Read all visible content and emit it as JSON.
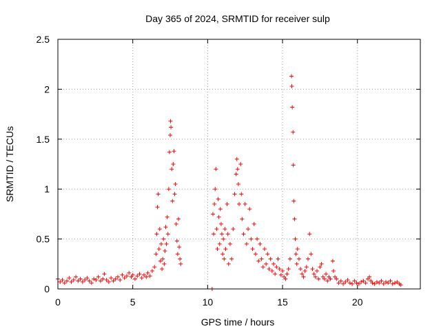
{
  "chart_data": {
    "type": "scatter",
    "title": "Day 365 of 2024, SRMTID for receiver sulp",
    "xlabel": "GPS time / hours",
    "ylabel": "SRMTID / TECUs",
    "xlim": [
      0,
      24.2
    ],
    "ylim": [
      0,
      2.5
    ],
    "xticks": [
      0,
      5,
      10,
      15,
      20
    ],
    "xtick_labels": [
      "0",
      "5",
      "10",
      "15",
      "20"
    ],
    "yticks": [
      0,
      0.5,
      1,
      1.5,
      2,
      2.5
    ],
    "ytick_labels": [
      "0",
      "0.5",
      "1",
      "1.5",
      "2",
      "2.5"
    ],
    "grid": true,
    "marker": "+",
    "color": "#ff0000",
    "series": [
      {
        "name": "SRMTID",
        "points": [
          [
            0.0,
            0.1
          ],
          [
            0.15,
            0.07
          ],
          [
            0.3,
            0.09
          ],
          [
            0.45,
            0.06
          ],
          [
            0.6,
            0.08
          ],
          [
            0.75,
            0.11
          ],
          [
            0.9,
            0.07
          ],
          [
            1.05,
            0.09
          ],
          [
            1.2,
            0.12
          ],
          [
            1.35,
            0.08
          ],
          [
            1.5,
            0.1
          ],
          [
            1.65,
            0.07
          ],
          [
            1.8,
            0.09
          ],
          [
            1.95,
            0.11
          ],
          [
            2.1,
            0.08
          ],
          [
            2.25,
            0.06
          ],
          [
            2.4,
            0.1
          ],
          [
            2.55,
            0.09
          ],
          [
            2.7,
            0.12
          ],
          [
            2.85,
            0.08
          ],
          [
            3.0,
            0.1
          ],
          [
            3.1,
            0.15
          ],
          [
            3.25,
            0.09
          ],
          [
            3.4,
            0.07
          ],
          [
            3.55,
            0.11
          ],
          [
            3.7,
            0.08
          ],
          [
            3.85,
            0.1
          ],
          [
            4.0,
            0.12
          ],
          [
            4.15,
            0.09
          ],
          [
            4.3,
            0.14
          ],
          [
            4.45,
            0.11
          ],
          [
            4.6,
            0.13
          ],
          [
            4.75,
            0.16
          ],
          [
            4.9,
            0.12
          ],
          [
            5.0,
            0.14
          ],
          [
            5.15,
            0.1
          ],
          [
            5.3,
            0.13
          ],
          [
            5.45,
            0.15
          ],
          [
            5.6,
            0.11
          ],
          [
            5.75,
            0.14
          ],
          [
            5.9,
            0.12
          ],
          [
            6.0,
            0.16
          ],
          [
            6.15,
            0.13
          ],
          [
            6.3,
            0.18
          ],
          [
            6.45,
            0.22
          ],
          [
            6.55,
            0.35
          ],
          [
            6.6,
            0.55
          ],
          [
            6.65,
            0.82
          ],
          [
            6.7,
            0.95
          ],
          [
            6.75,
            0.4
          ],
          [
            6.8,
            0.6
          ],
          [
            6.85,
            0.28
          ],
          [
            6.9,
            0.45
          ],
          [
            6.95,
            0.2
          ],
          [
            7.0,
            0.3
          ],
          [
            7.05,
            0.5
          ],
          [
            7.1,
            0.25
          ],
          [
            7.15,
            0.38
          ],
          [
            7.2,
            0.62
          ],
          [
            7.25,
            0.45
          ],
          [
            7.3,
            0.72
          ],
          [
            7.35,
            0.55
          ],
          [
            7.4,
            1.0
          ],
          [
            7.45,
            1.37
          ],
          [
            7.5,
            1.54
          ],
          [
            7.52,
            1.68
          ],
          [
            7.55,
            1.62
          ],
          [
            7.6,
            1.2
          ],
          [
            7.65,
            0.88
          ],
          [
            7.7,
            1.25
          ],
          [
            7.75,
            1.38
          ],
          [
            7.8,
            0.95
          ],
          [
            7.85,
            1.05
          ],
          [
            7.9,
            0.65
          ],
          [
            7.95,
            0.48
          ],
          [
            8.0,
            0.35
          ],
          [
            8.05,
            0.7
          ],
          [
            8.1,
            0.42
          ],
          [
            8.15,
            0.3
          ],
          [
            8.2,
            0.25
          ],
          [
            10.3,
            0.0
          ],
          [
            10.35,
            0.75
          ],
          [
            10.4,
            0.55
          ],
          [
            10.45,
            0.85
          ],
          [
            10.5,
            1.0
          ],
          [
            10.55,
            1.2
          ],
          [
            10.6,
            0.6
          ],
          [
            10.65,
            0.4
          ],
          [
            10.7,
            0.9
          ],
          [
            10.75,
            0.72
          ],
          [
            10.8,
            0.45
          ],
          [
            10.85,
            0.8
          ],
          [
            10.9,
            0.65
          ],
          [
            10.95,
            0.55
          ],
          [
            11.0,
            0.35
          ],
          [
            11.05,
            0.5
          ],
          [
            11.1,
            0.3
          ],
          [
            11.15,
            0.6
          ],
          [
            11.2,
            0.4
          ],
          [
            11.3,
            0.85
          ],
          [
            11.35,
            0.55
          ],
          [
            11.4,
            0.25
          ],
          [
            11.5,
            0.45
          ],
          [
            11.6,
            0.3
          ],
          [
            11.7,
            0.6
          ],
          [
            11.8,
            0.95
          ],
          [
            11.9,
            1.15
          ],
          [
            11.95,
            1.3
          ],
          [
            12.0,
            1.2
          ],
          [
            12.05,
            1.05
          ],
          [
            12.1,
            0.85
          ],
          [
            12.2,
            1.25
          ],
          [
            12.25,
            0.95
          ],
          [
            12.3,
            0.7
          ],
          [
            12.4,
            0.55
          ],
          [
            12.5,
            0.85
          ],
          [
            12.6,
            0.45
          ],
          [
            12.7,
            0.6
          ],
          [
            12.8,
            0.8
          ],
          [
            12.9,
            0.5
          ],
          [
            13.0,
            0.4
          ],
          [
            13.1,
            0.65
          ],
          [
            13.2,
            0.35
          ],
          [
            13.3,
            0.5
          ],
          [
            13.4,
            0.28
          ],
          [
            13.5,
            0.45
          ],
          [
            13.6,
            0.3
          ],
          [
            13.7,
            0.22
          ],
          [
            13.8,
            0.4
          ],
          [
            13.9,
            0.25
          ],
          [
            14.0,
            0.35
          ],
          [
            14.1,
            0.2
          ],
          [
            14.2,
            0.3
          ],
          [
            14.3,
            0.18
          ],
          [
            14.4,
            0.25
          ],
          [
            14.5,
            0.15
          ],
          [
            14.6,
            0.22
          ],
          [
            14.7,
            0.3
          ],
          [
            14.8,
            0.2
          ],
          [
            14.9,
            0.14
          ],
          [
            15.0,
            0.18
          ],
          [
            15.1,
            0.12
          ],
          [
            15.2,
            0.1
          ],
          [
            15.3,
            0.15
          ],
          [
            15.4,
            0.2
          ],
          [
            15.5,
            0.3
          ],
          [
            15.6,
            2.13
          ],
          [
            15.62,
            2.03
          ],
          [
            15.65,
            1.82
          ],
          [
            15.7,
            1.57
          ],
          [
            15.72,
            1.24
          ],
          [
            15.75,
            0.88
          ],
          [
            15.8,
            0.7
          ],
          [
            15.85,
            0.5
          ],
          [
            15.9,
            0.35
          ],
          [
            15.95,
            0.25
          ],
          [
            16.0,
            0.4
          ],
          [
            16.1,
            0.3
          ],
          [
            16.2,
            0.2
          ],
          [
            16.3,
            0.15
          ],
          [
            16.4,
            0.12
          ],
          [
            16.5,
            0.18
          ],
          [
            16.6,
            0.22
          ],
          [
            16.7,
            0.3
          ],
          [
            16.8,
            0.55
          ],
          [
            16.9,
            0.35
          ],
          [
            17.0,
            0.2
          ],
          [
            17.1,
            0.15
          ],
          [
            17.2,
            0.12
          ],
          [
            17.3,
            0.18
          ],
          [
            17.4,
            0.1
          ],
          [
            17.5,
            0.22
          ],
          [
            17.6,
            0.25
          ],
          [
            17.7,
            0.12
          ],
          [
            17.8,
            0.1
          ],
          [
            17.9,
            0.15
          ],
          [
            18.0,
            0.08
          ],
          [
            18.1,
            0.12
          ],
          [
            18.2,
            0.1
          ],
          [
            18.35,
            0.28
          ],
          [
            18.4,
            0.18
          ],
          [
            18.5,
            0.12
          ],
          [
            18.6,
            0.1
          ],
          [
            18.75,
            0.06
          ],
          [
            18.9,
            0.08
          ],
          [
            19.05,
            0.05
          ],
          [
            19.2,
            0.07
          ],
          [
            19.35,
            0.09
          ],
          [
            19.5,
            0.06
          ],
          [
            19.65,
            0.05
          ],
          [
            19.8,
            0.08
          ],
          [
            19.95,
            0.06
          ],
          [
            20.1,
            0.05
          ],
          [
            20.25,
            0.07
          ],
          [
            20.4,
            0.08
          ],
          [
            20.55,
            0.06
          ],
          [
            20.7,
            0.1
          ],
          [
            20.8,
            0.12
          ],
          [
            20.9,
            0.08
          ],
          [
            21.0,
            0.06
          ],
          [
            21.15,
            0.05
          ],
          [
            21.3,
            0.07
          ],
          [
            21.45,
            0.06
          ],
          [
            21.6,
            0.08
          ],
          [
            21.75,
            0.05
          ],
          [
            21.9,
            0.07
          ],
          [
            22.05,
            0.06
          ],
          [
            22.2,
            0.08
          ],
          [
            22.35,
            0.05
          ],
          [
            22.5,
            0.06
          ],
          [
            22.65,
            0.07
          ],
          [
            22.8,
            0.05
          ],
          [
            22.9,
            0.04
          ]
        ]
      }
    ]
  }
}
